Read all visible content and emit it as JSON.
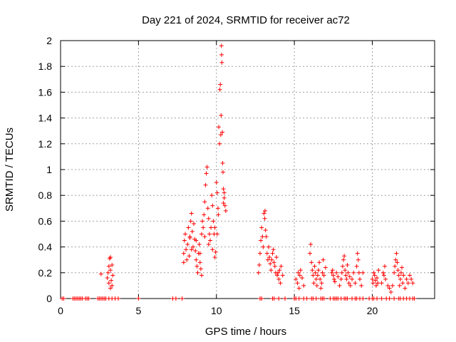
{
  "chart_data": {
    "type": "scatter",
    "title": "Day 221 of 2024, SRMTID for receiver ac72",
    "xlabel": "GPS time / hours",
    "ylabel": "SRMTID / TECUs",
    "xlim": [
      0,
      24
    ],
    "ylim": [
      0,
      2
    ],
    "x_ticks": [
      "0",
      "5",
      "10",
      "15",
      "20"
    ],
    "y_ticks": [
      "0",
      "0.2",
      "0.4",
      "0.6",
      "0.8",
      "1",
      "1.2",
      "1.4",
      "1.6",
      "1.8",
      "2"
    ],
    "grid": true,
    "marker": "plus",
    "color": "#ff0000",
    "series": [
      {
        "name": "SRMTID",
        "points": [
          [
            0.1,
            0
          ],
          [
            0.2,
            0
          ],
          [
            0.8,
            0
          ],
          [
            0.9,
            0
          ],
          [
            1.0,
            0
          ],
          [
            1.1,
            0
          ],
          [
            1.2,
            0
          ],
          [
            1.3,
            0
          ],
          [
            1.4,
            0
          ],
          [
            1.6,
            0
          ],
          [
            1.7,
            0
          ],
          [
            1.8,
            0
          ],
          [
            2.4,
            0
          ],
          [
            2.5,
            0
          ],
          [
            2.6,
            0
          ],
          [
            2.7,
            0
          ],
          [
            2.8,
            0
          ],
          [
            2.9,
            0
          ],
          [
            3.1,
            0
          ],
          [
            3.3,
            0
          ],
          [
            3.5,
            0
          ],
          [
            3.7,
            0
          ],
          [
            5.0,
            0
          ],
          [
            7.2,
            0
          ],
          [
            7.4,
            0
          ],
          [
            7.8,
            0
          ],
          [
            12.8,
            0
          ],
          [
            12.9,
            0
          ],
          [
            13.6,
            0
          ],
          [
            13.7,
            0
          ],
          [
            14.0,
            0
          ],
          [
            14.4,
            0
          ],
          [
            15.0,
            0
          ],
          [
            15.1,
            0
          ],
          [
            15.3,
            0
          ],
          [
            15.6,
            0
          ],
          [
            15.8,
            0
          ],
          [
            16.1,
            0
          ],
          [
            16.2,
            0
          ],
          [
            16.4,
            0
          ],
          [
            16.7,
            0
          ],
          [
            16.8,
            0
          ],
          [
            16.9,
            0
          ],
          [
            17.3,
            0
          ],
          [
            17.5,
            0
          ],
          [
            17.6,
            0
          ],
          [
            17.7,
            0
          ],
          [
            17.8,
            0
          ],
          [
            18.0,
            0
          ],
          [
            18.2,
            0
          ],
          [
            18.3,
            0
          ],
          [
            18.4,
            0
          ],
          [
            18.7,
            0
          ],
          [
            18.9,
            0
          ],
          [
            19.0,
            0
          ],
          [
            19.2,
            0
          ],
          [
            19.4,
            0
          ],
          [
            19.8,
            0
          ],
          [
            20.0,
            0
          ],
          [
            20.1,
            0
          ],
          [
            20.3,
            0
          ],
          [
            20.6,
            0
          ],
          [
            20.9,
            0
          ],
          [
            21.1,
            0
          ],
          [
            21.4,
            0
          ],
          [
            21.7,
            0
          ],
          [
            21.8,
            0
          ],
          [
            22.0,
            0
          ],
          [
            22.2,
            0
          ],
          [
            22.4,
            0
          ],
          [
            22.6,
            0
          ],
          [
            22.7,
            0
          ],
          [
            2.6,
            0.19
          ],
          [
            3.0,
            0.16
          ],
          [
            3.05,
            0.2
          ],
          [
            3.1,
            0.25
          ],
          [
            3.15,
            0.31
          ],
          [
            3.2,
            0.32
          ],
          [
            3.2,
            0.22
          ],
          [
            3.25,
            0.14
          ],
          [
            3.3,
            0.1
          ],
          [
            3.3,
            0.26
          ],
          [
            3.35,
            0.18
          ],
          [
            3.1,
            0.12
          ],
          [
            3.2,
            0.08
          ],
          [
            7.9,
            0.35
          ],
          [
            7.95,
            0.45
          ],
          [
            8.0,
            0.5
          ],
          [
            8.05,
            0.38
          ],
          [
            8.1,
            0.3
          ],
          [
            8.15,
            0.42
          ],
          [
            8.2,
            0.55
          ],
          [
            8.25,
            0.33
          ],
          [
            8.3,
            0.47
          ],
          [
            8.35,
            0.6
          ],
          [
            8.4,
            0.66
          ],
          [
            8.45,
            0.52
          ],
          [
            8.5,
            0.4
          ],
          [
            8.55,
            0.58
          ],
          [
            8.6,
            0.46
          ],
          [
            8.65,
            0.37
          ],
          [
            8.7,
            0.3
          ],
          [
            8.75,
            0.25
          ],
          [
            8.8,
            0.2
          ],
          [
            8.85,
            0.35
          ],
          [
            8.9,
            0.42
          ],
          [
            8.95,
            0.28
          ],
          [
            9.0,
            0.23
          ],
          [
            9.05,
            0.5
          ],
          [
            9.1,
            0.6
          ],
          [
            9.15,
            0.55
          ],
          [
            9.2,
            0.65
          ],
          [
            9.25,
            0.75
          ],
          [
            9.3,
            0.88
          ],
          [
            9.35,
            0.97
          ],
          [
            9.4,
            1.02
          ],
          [
            9.45,
            0.7
          ],
          [
            9.5,
            0.62
          ],
          [
            9.55,
            0.5
          ],
          [
            9.6,
            0.45
          ],
          [
            9.65,
            0.55
          ],
          [
            9.7,
            0.8
          ],
          [
            9.75,
            0.72
          ],
          [
            9.8,
            0.6
          ],
          [
            9.85,
            0.5
          ],
          [
            9.9,
            0.32
          ],
          [
            9.95,
            0.36
          ],
          [
            10.0,
            0.9
          ],
          [
            10.05,
            0.82
          ],
          [
            10.1,
            0.7
          ],
          [
            10.12,
            0.65
          ],
          [
            10.15,
            1.33
          ],
          [
            10.2,
            1.2
          ],
          [
            10.22,
            1.62
          ],
          [
            10.25,
            1.66
          ],
          [
            10.28,
            1.27
          ],
          [
            10.3,
            1.42
          ],
          [
            10.32,
            1.96
          ],
          [
            10.33,
            1.89
          ],
          [
            10.35,
            1.83
          ],
          [
            10.38,
            1.29
          ],
          [
            10.4,
            1.05
          ],
          [
            10.42,
            0.98
          ],
          [
            10.45,
            0.85
          ],
          [
            10.5,
            0.78
          ],
          [
            10.55,
            0.72
          ],
          [
            10.6,
            0.68
          ],
          [
            7.9,
            0.28
          ],
          [
            8.3,
            0.48
          ],
          [
            8.4,
            0.38
          ],
          [
            8.7,
            0.45
          ],
          [
            8.95,
            0.35
          ],
          [
            9.05,
            0.18
          ],
          [
            9.25,
            0.48
          ],
          [
            9.5,
            0.42
          ],
          [
            9.75,
            0.38
          ],
          [
            9.9,
            0.55
          ],
          [
            10.05,
            0.5
          ],
          [
            10.45,
            0.74
          ],
          [
            10.5,
            0.82
          ],
          [
            12.7,
            0.2
          ],
          [
            12.75,
            0.26
          ],
          [
            12.8,
            0.35
          ],
          [
            12.85,
            0.45
          ],
          [
            12.9,
            0.55
          ],
          [
            12.95,
            0.48
          ],
          [
            13.0,
            0.4
          ],
          [
            13.05,
            0.66
          ],
          [
            13.1,
            0.62
          ],
          [
            13.12,
            0.68
          ],
          [
            13.15,
            0.53
          ],
          [
            13.2,
            0.48
          ],
          [
            13.25,
            0.35
          ],
          [
            13.3,
            0.3
          ],
          [
            13.35,
            0.4
          ],
          [
            13.4,
            0.32
          ],
          [
            13.45,
            0.27
          ],
          [
            13.5,
            0.22
          ],
          [
            13.55,
            0.3
          ],
          [
            13.6,
            0.35
          ],
          [
            13.65,
            0.38
          ],
          [
            13.7,
            0.28
          ],
          [
            13.75,
            0.25
          ],
          [
            13.8,
            0.2
          ],
          [
            13.85,
            0.32
          ],
          [
            13.9,
            0.18
          ],
          [
            13.95,
            0.2
          ],
          [
            14.0,
            0.15
          ],
          [
            14.05,
            0.22
          ],
          [
            14.1,
            0.12
          ],
          [
            14.15,
            0.25
          ],
          [
            14.25,
            0.18
          ],
          [
            15.1,
            0.15
          ],
          [
            15.2,
            0.12
          ],
          [
            15.25,
            0.2
          ],
          [
            15.3,
            0.08
          ],
          [
            15.35,
            0.18
          ],
          [
            15.4,
            0.22
          ],
          [
            15.5,
            0.16
          ],
          [
            15.6,
            0.1
          ],
          [
            16.0,
            0.35
          ],
          [
            16.05,
            0.42
          ],
          [
            16.1,
            0.28
          ],
          [
            16.15,
            0.22
          ],
          [
            16.2,
            0.18
          ],
          [
            16.25,
            0.12
          ],
          [
            16.3,
            0.25
          ],
          [
            16.35,
            0.2
          ],
          [
            16.4,
            0.15
          ],
          [
            16.45,
            0.1
          ],
          [
            16.5,
            0.18
          ],
          [
            16.55,
            0.22
          ],
          [
            16.6,
            0.28
          ],
          [
            16.65,
            0.15
          ],
          [
            16.7,
            0.08
          ],
          [
            16.75,
            0.12
          ],
          [
            16.8,
            0.2
          ],
          [
            16.85,
            0.3
          ],
          [
            16.9,
            0.18
          ],
          [
            17.0,
            0.24
          ],
          [
            17.4,
            0.2
          ],
          [
            17.45,
            0.22
          ],
          [
            17.5,
            0.18
          ],
          [
            17.55,
            0.15
          ],
          [
            17.6,
            0.13
          ],
          [
            17.7,
            0.2
          ],
          [
            17.8,
            0.17
          ],
          [
            17.9,
            0.1
          ],
          [
            18.0,
            0.15
          ],
          [
            18.05,
            0.2
          ],
          [
            18.1,
            0.25
          ],
          [
            18.15,
            0.3
          ],
          [
            18.2,
            0.33
          ],
          [
            18.25,
            0.22
          ],
          [
            18.3,
            0.18
          ],
          [
            18.35,
            0.15
          ],
          [
            18.4,
            0.26
          ],
          [
            18.45,
            0.2
          ],
          [
            18.5,
            0.12
          ],
          [
            18.55,
            0.17
          ],
          [
            18.6,
            0.1
          ],
          [
            18.7,
            0.15
          ],
          [
            18.8,
            0.2
          ],
          [
            18.9,
            0.12
          ],
          [
            19.0,
            0.25
          ],
          [
            19.05,
            0.35
          ],
          [
            19.1,
            0.3
          ],
          [
            19.15,
            0.2
          ],
          [
            19.2,
            0.15
          ],
          [
            19.3,
            0.1
          ],
          [
            19.4,
            0.2
          ],
          [
            20.0,
            0.15
          ],
          [
            20.05,
            0.12
          ],
          [
            20.1,
            0.2
          ],
          [
            20.15,
            0.18
          ],
          [
            20.2,
            0.14
          ],
          [
            20.25,
            0.1
          ],
          [
            20.3,
            0.16
          ],
          [
            20.35,
            0.12
          ],
          [
            20.4,
            0.22
          ],
          [
            20.6,
            0.12
          ],
          [
            20.7,
            0.2
          ],
          [
            20.75,
            0.18
          ],
          [
            20.8,
            0.25
          ],
          [
            20.85,
            0.15
          ],
          [
            21.0,
            0.1
          ],
          [
            21.1,
            0.08
          ],
          [
            21.2,
            0.05
          ],
          [
            21.3,
            0.1
          ],
          [
            21.4,
            0.2
          ],
          [
            21.45,
            0.25
          ],
          [
            21.5,
            0.3
          ],
          [
            21.55,
            0.35
          ],
          [
            21.6,
            0.28
          ],
          [
            21.65,
            0.22
          ],
          [
            21.7,
            0.18
          ],
          [
            21.75,
            0.1
          ],
          [
            21.8,
            0.15
          ],
          [
            21.85,
            0.2
          ],
          [
            21.9,
            0.24
          ],
          [
            21.95,
            0.12
          ],
          [
            22.0,
            0.18
          ],
          [
            22.1,
            0.08
          ],
          [
            22.2,
            0.15
          ],
          [
            22.3,
            0.12
          ],
          [
            22.4,
            0.18
          ],
          [
            22.5,
            0.15
          ],
          [
            22.6,
            0.12
          ]
        ]
      }
    ]
  }
}
